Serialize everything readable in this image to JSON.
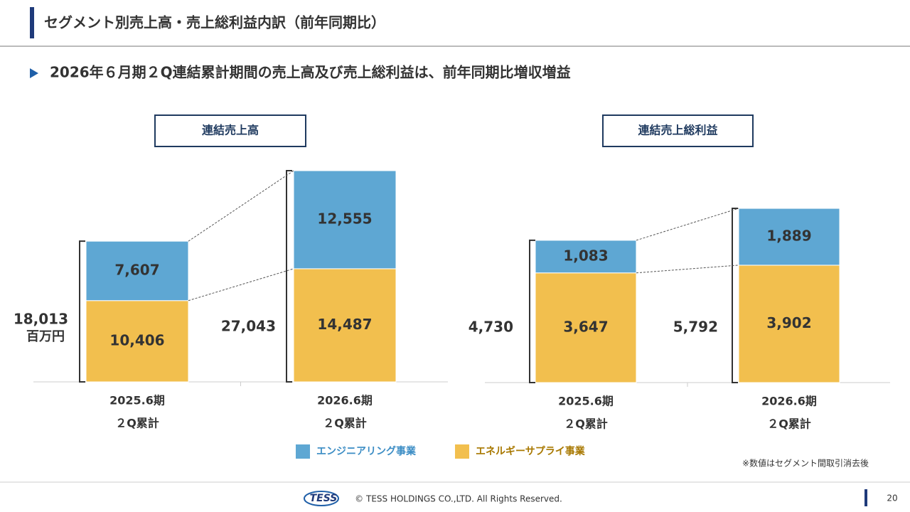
{
  "slide": {
    "title": "セグメント別売上高・売上総利益内訳（前年同期比）",
    "subtitle": "2026年６月期２Q連結累計期間の売上高及び売上総利益は、前年同期比増収増益",
    "note": "※数値はセグメント間取引消去後",
    "logo": "TESS",
    "copyright": "© TESS HOLDINGS CO.,LTD. All Rights Reserved.",
    "page": "20"
  },
  "chart_data": [
    {
      "type": "stacked-bar",
      "title": "連結売上高",
      "unit": "百万円",
      "categories": [
        [
          "2025.6期",
          "２Q累計"
        ],
        [
          "2026.6期",
          "２Q累計"
        ]
      ],
      "series": [
        {
          "name": "エンジニアリング事業",
          "color": "#5ea7d3",
          "values": [
            7607,
            12555
          ],
          "value_labels": [
            "7,607",
            "12,555"
          ]
        },
        {
          "name": "エネルギーサプライ事業",
          "color": "#f2bf4e",
          "values": [
            10406,
            14487
          ],
          "value_labels": [
            "10,406",
            "14,487"
          ]
        }
      ],
      "totals": [
        18013,
        27043
      ],
      "total_labels": [
        "18,013",
        "27,043"
      ]
    },
    {
      "type": "stacked-bar",
      "title": "連結売上総利益",
      "categories": [
        [
          "2025.6期",
          "２Q累計"
        ],
        [
          "2026.6期",
          "２Q累計"
        ]
      ],
      "series": [
        {
          "color": "#5ea7d3",
          "values": [
            1083,
            1889
          ],
          "value_labels": [
            "1,083",
            "1,889"
          ]
        },
        {
          "color": "#f2bf4e",
          "values": [
            3647,
            3902
          ],
          "value_labels": [
            "3,647",
            "3,902"
          ]
        }
      ],
      "totals": [
        4730,
        5792
      ],
      "total_labels": [
        "4,730",
        "5,792"
      ]
    }
  ]
}
